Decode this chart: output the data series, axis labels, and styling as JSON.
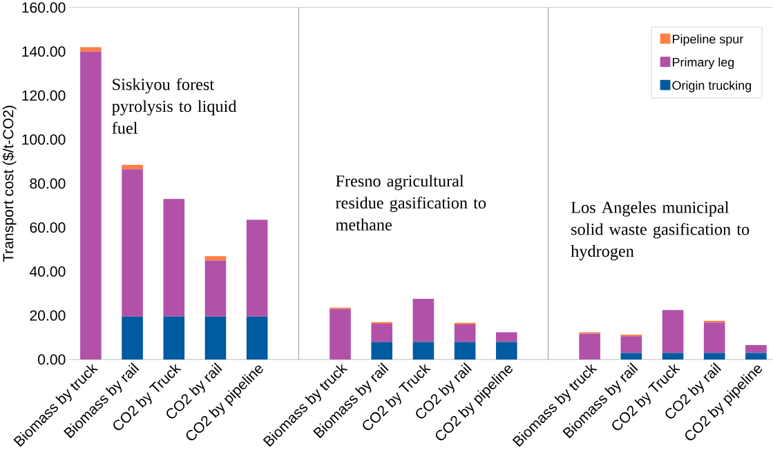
{
  "chart_data": {
    "type": "bar",
    "stacked": true,
    "ylabel": "Transport cost ($/t-CO2)",
    "categories": [
      "Biomass by truck",
      "Biomass by rail",
      "CO2 by Truck",
      "CO2 by rail",
      "CO2 by pipeline",
      null,
      "Biomass by truck",
      "Biomass by rail",
      "CO2 by Truck",
      "CO2 by rail",
      "CO2 by pipeline",
      null,
      "Biomass by truck",
      "Biomass by rail",
      "CO2 by Truck",
      "CO2 by rail",
      "CO2 by pipeline"
    ],
    "series": [
      {
        "name": "Origin trucking",
        "color": "#005ba1",
        "values": [
          0,
          19.5,
          19.5,
          19.5,
          19.5,
          null,
          0,
          8,
          8,
          8,
          8,
          null,
          0,
          3,
          3,
          3,
          3
        ]
      },
      {
        "name": "Primary leg",
        "color": "#b152a8",
        "values": [
          140,
          67,
          53.5,
          25.5,
          44,
          null,
          23,
          8.3,
          19.6,
          8,
          4.4,
          null,
          11.8,
          7.6,
          19.5,
          13.9,
          3.6
        ]
      },
      {
        "name": "Pipeline spur",
        "color": "#ff7f45",
        "values": [
          2,
          2,
          0,
          2,
          0,
          null,
          0.6,
          0.7,
          0,
          0.7,
          0,
          null,
          0.6,
          0.7,
          0,
          0.7,
          0
        ]
      }
    ],
    "ylim": [
      0,
      160
    ],
    "yticks": [
      {
        "value": 0,
        "label": "0.00"
      },
      {
        "value": 20,
        "label": "20.00"
      },
      {
        "value": 40,
        "label": "40.00"
      },
      {
        "value": 60,
        "label": "60.00"
      },
      {
        "value": 80,
        "label": "80.00"
      },
      {
        "value": 100,
        "label": "100.00"
      },
      {
        "value": 120,
        "label": "120.00"
      },
      {
        "value": 140,
        "label": "140.00"
      },
      {
        "value": 160,
        "label": "160.00"
      }
    ],
    "annotations": [
      "Siskiyou forest pyrolysis to liquid fuel",
      "Fresno agricultural residue gasification to methane",
      "Los Angeles municipal solid waste gasification to hydrogen"
    ],
    "legend": "top right"
  }
}
